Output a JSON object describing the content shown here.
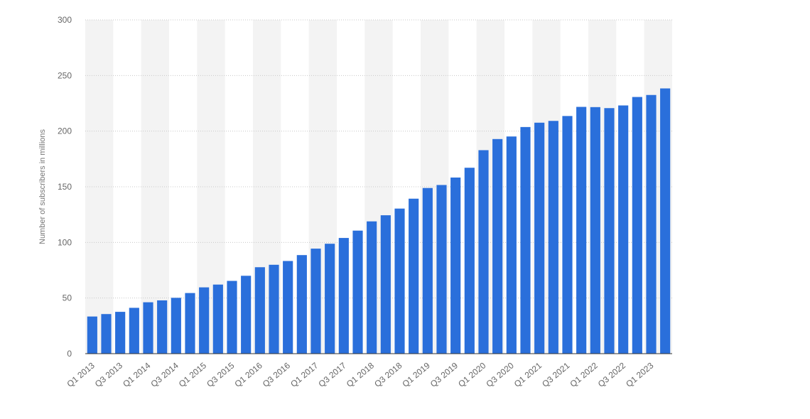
{
  "colors": {
    "bar": "#2a6fdb",
    "band": "#f3f3f3",
    "grid": "#c8c8c8",
    "axis": "#333333",
    "text": "#666666"
  },
  "chart_data": {
    "type": "bar",
    "title": "",
    "xlabel": "",
    "ylabel": "Number of subscribers in millions",
    "ylim": [
      0,
      300
    ],
    "yticks": [
      0,
      50,
      100,
      150,
      200,
      250,
      300
    ],
    "grid": true,
    "categories": [
      "Q1 2013",
      "Q2 2013",
      "Q3 2013",
      "Q4 2013",
      "Q1 2014",
      "Q2 2014",
      "Q3 2014",
      "Q4 2014",
      "Q1 2015",
      "Q2 2015",
      "Q3 2015",
      "Q4 2015",
      "Q1 2016",
      "Q2 2016",
      "Q3 2016",
      "Q4 2016",
      "Q1 2017",
      "Q2 2017",
      "Q3 2017",
      "Q4 2017",
      "Q1 2018",
      "Q2 2018",
      "Q3 2018",
      "Q4 2018",
      "Q1 2019",
      "Q2 2019",
      "Q3 2019",
      "Q4 2019",
      "Q1 2020",
      "Q2 2020",
      "Q3 2020",
      "Q4 2020",
      "Q1 2021",
      "Q2 2021",
      "Q3 2021",
      "Q4 2021",
      "Q1 2022",
      "Q2 2022",
      "Q3 2022",
      "Q4 2022",
      "Q1 2023",
      "Q2 2023"
    ],
    "xtick_labels": [
      "Q1 2013",
      "Q3 2013",
      "Q1 2014",
      "Q3 2014",
      "Q1 2015",
      "Q3 2015",
      "Q1 2016",
      "Q3 2016",
      "Q1 2017",
      "Q3 2017",
      "Q1 2018",
      "Q3 2018",
      "Q1 2019",
      "Q3 2019",
      "Q1 2020",
      "Q3 2020",
      "Q1 2021",
      "Q3 2021",
      "Q1 2022",
      "Q3 2022",
      "Q1 2023"
    ],
    "values": [
      33.4,
      35.6,
      37.6,
      41.2,
      46.2,
      47.9,
      50.2,
      54.5,
      59.6,
      62.1,
      65.4,
      70.0,
      77.7,
      79.9,
      83.3,
      88.6,
      94.4,
      98.8,
      104.0,
      110.6,
      118.9,
      124.4,
      130.4,
      139.3,
      148.9,
      151.6,
      158.3,
      167.1,
      182.9,
      192.9,
      195.2,
      203.7,
      207.6,
      209.2,
      213.6,
      221.8,
      221.6,
      220.7,
      223.1,
      230.7,
      232.5,
      238.4
    ]
  }
}
